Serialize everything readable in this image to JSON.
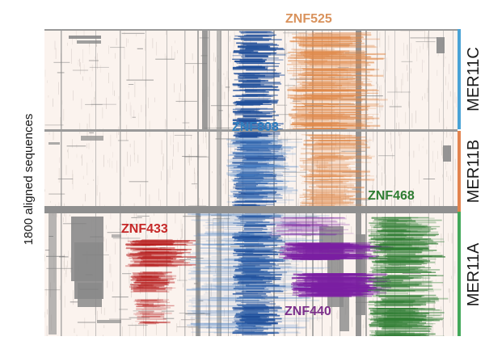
{
  "y_axis_label": "1800 aligned sequences",
  "families": [
    {
      "name": "MER11C",
      "color": "#4aa3d6"
    },
    {
      "name": "MER11B",
      "color": "#e2844f"
    },
    {
      "name": "MER11A",
      "color": "#43a85a"
    }
  ],
  "znf_labels": [
    {
      "name": "ZNF525",
      "color": "#d9925c"
    },
    {
      "name": "ZNF808",
      "color": "#2f7fbf"
    },
    {
      "name": "ZNF468",
      "color": "#2e7d32"
    },
    {
      "name": "ZNF433",
      "color": "#c62828"
    },
    {
      "name": "ZNF440",
      "color": "#7b2f8a"
    }
  ],
  "colors": {
    "background": "#fbf3ee",
    "gap": "#8a8a8a",
    "separator": "#9a9a9a"
  },
  "chart_data": {
    "type": "heatmap",
    "rows_total": 1800,
    "ylabel": "1800 aligned sequences",
    "family_blocks": [
      {
        "family": "MER11C",
        "order": 1
      },
      {
        "family": "MER11B",
        "order": 2
      },
      {
        "family": "MER11A",
        "order": 3
      }
    ],
    "binding_signals": [
      {
        "znf": "ZNF525",
        "color": "#e0894a",
        "families": [
          "MER11C",
          "MER11B"
        ]
      },
      {
        "znf": "ZNF808",
        "color": "#1f4e99",
        "families": [
          "MER11C",
          "MER11B",
          "MER11A"
        ]
      },
      {
        "znf": "ZNF468",
        "color": "#2e7d32",
        "families": [
          "MER11A"
        ]
      },
      {
        "znf": "ZNF433",
        "color": "#b71c1c",
        "families": [
          "MER11A"
        ]
      },
      {
        "znf": "ZNF440",
        "color": "#7b1fa2",
        "families": [
          "MER11A"
        ]
      }
    ]
  }
}
